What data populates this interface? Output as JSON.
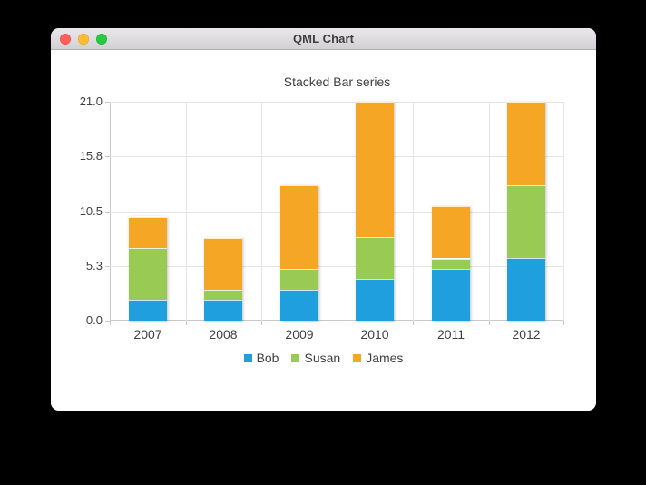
{
  "window": {
    "title": "QML Chart",
    "traffic_lights": {
      "close_color": "#ff5f57",
      "minimize_color": "#febc2e",
      "zoom_color": "#28c840"
    }
  },
  "chart_data": {
    "type": "bar",
    "stacked": true,
    "title": "Stacked Bar series",
    "categories": [
      "2007",
      "2008",
      "2009",
      "2010",
      "2011",
      "2012"
    ],
    "series": [
      {
        "name": "Bob",
        "color": "#209fdf",
        "values": [
          2,
          2,
          3,
          4,
          5,
          6
        ]
      },
      {
        "name": "Susan",
        "color": "#99ca53",
        "values": [
          5,
          1,
          2,
          4,
          1,
          7
        ]
      },
      {
        "name": "James",
        "color": "#f6a625",
        "values": [
          3,
          5,
          8,
          13,
          5,
          8
        ]
      }
    ],
    "totals": [
      10,
      8,
      13,
      21,
      11,
      21
    ],
    "ylim": [
      0,
      21
    ],
    "y_tick_labels": [
      "0.0",
      "5.3",
      "10.5",
      "15.8",
      "21.0"
    ],
    "grid": true,
    "legend_position": "bottom",
    "background": "#ffffff",
    "label_color": "#404044"
  }
}
